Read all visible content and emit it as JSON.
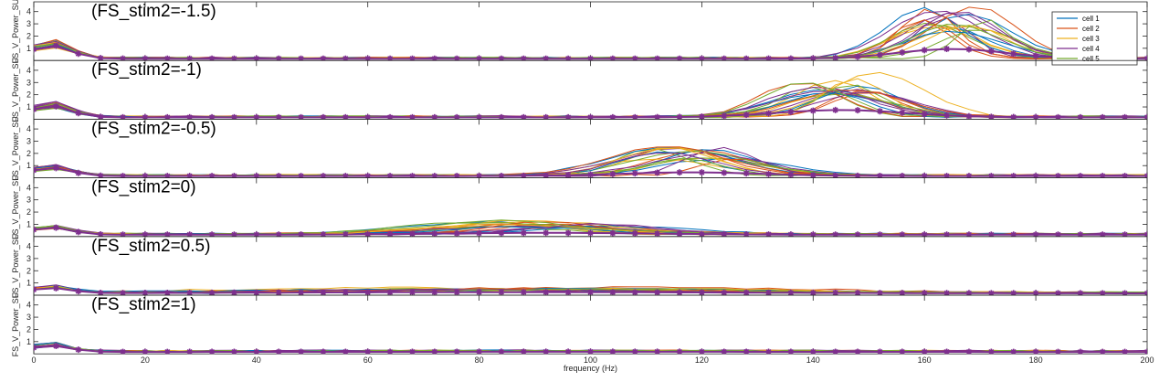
{
  "chart_data": {
    "type": "line",
    "xlabel": "frequency (Hz)",
    "xlim": [
      0,
      200
    ],
    "xticks": [
      0,
      20,
      40,
      60,
      80,
      100,
      120,
      140,
      160,
      180,
      200
    ],
    "ylim": [
      0,
      4.8
    ],
    "yticks": [
      1,
      2,
      3,
      4
    ],
    "grid": false,
    "legend": {
      "placement": "top-right",
      "panel": 0,
      "entries": [
        "cell 1",
        "cell 2",
        "cell 3",
        "cell 4",
        "cell 5"
      ]
    },
    "colors": [
      "#0072bd",
      "#d95319",
      "#edb120",
      "#7e2f8e",
      "#77ac30"
    ],
    "mean_color": "#7e2f8e",
    "panels": [
      {
        "title": "(FS_stim2=-1.5)",
        "ylabel": "FS_V_Power_SU",
        "peak_center": 165,
        "peak_width": 9,
        "peak_amp": 3.7,
        "mean_peak_amp": 0.8,
        "low_amp": 1.3
      },
      {
        "title": "(FS_stim2=-1)",
        "ylabel": "FS_V_Power_SU",
        "peak_center": 145,
        "peak_width": 11,
        "peak_amp": 3.0,
        "mean_peak_amp": 0.6,
        "low_amp": 1.1
      },
      {
        "title": "(FS_stim2=-0.5)",
        "ylabel": "FS_V_Power_SU",
        "peak_center": 118,
        "peak_width": 12,
        "peak_amp": 2.0,
        "mean_peak_amp": 0.3,
        "low_amp": 0.8
      },
      {
        "title": "(FS_stim2=0)",
        "ylabel": "FS_V_Power_SU",
        "peak_center": 92,
        "peak_width": 18,
        "peak_amp": 0.9,
        "mean_peak_amp": 0.15,
        "low_amp": 0.7
      },
      {
        "title": "(FS_stim2=0.5)",
        "ylabel": "FS_V_Power_SU",
        "peak_center": 85,
        "peak_width": 40,
        "peak_amp": 0.35,
        "mean_peak_amp": 0.1,
        "low_amp": 0.5
      },
      {
        "title": "(FS_stim2=1)",
        "ylabel": "FS_V_Power_SU",
        "peak_center": 100,
        "peak_width": 60,
        "peak_amp": 0.05,
        "mean_peak_amp": 0.02,
        "low_amp": 0.6
      }
    ]
  }
}
